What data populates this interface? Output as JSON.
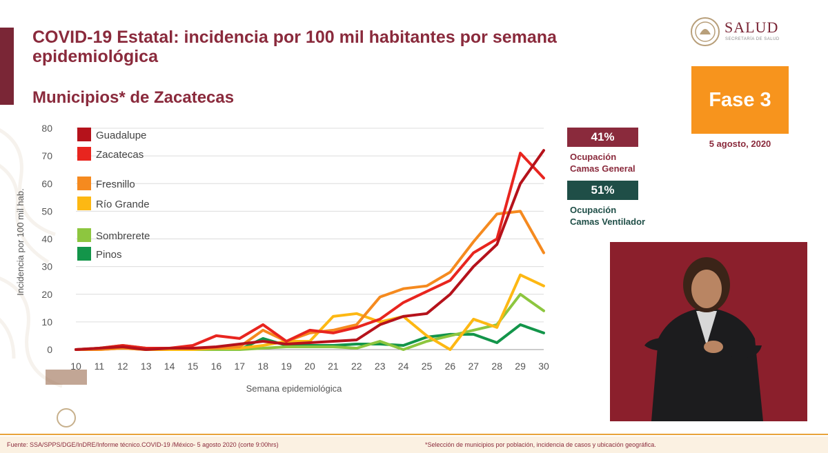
{
  "header": {
    "title": "COVID-19 Estatal: incidencia por 100 mil habitantes por semana epidemiológica",
    "subtitle": "Municipios* de Zacatecas"
  },
  "logo": {
    "brand": "SALUD",
    "sub": "SECRETARÍA DE SALUD"
  },
  "phase": {
    "label": "Fase 3",
    "date": "5 agosto, 2020"
  },
  "occupancy": [
    {
      "value": "41%",
      "label_line1": "Ocupación",
      "label_line2": "Camas General",
      "color": "#8a2a3c"
    },
    {
      "value": "51%",
      "label_line1": "Ocupación",
      "label_line2": "Camas Ventilador",
      "color": "#1f4e47"
    }
  ],
  "footer": {
    "source": "Fuente: SSA/SPPS/DGE/InDRE/Informe técnico.COVID-19 /México- 5 agosto 2020 (corte 9:00hrs)",
    "note": "*Selección de municipios por población, incidencia de casos y ubicación geográfica."
  },
  "chart_data": {
    "type": "line",
    "xlabel": "Semana epidemiológica",
    "ylabel": "Incidencia por 100 mil hab.",
    "ylim": [
      0,
      80
    ],
    "yticks": [
      0,
      10,
      20,
      30,
      40,
      50,
      60,
      70,
      80
    ],
    "x": [
      10,
      11,
      12,
      13,
      14,
      15,
      16,
      17,
      18,
      19,
      20,
      21,
      22,
      23,
      24,
      25,
      26,
      27,
      28,
      29,
      30
    ],
    "grid": true,
    "legend": "top-left",
    "series": [
      {
        "name": "Guadalupe",
        "color": "#b5121b",
        "values": [
          0,
          0.5,
          1,
          0,
          0.5,
          0.5,
          1,
          2,
          3,
          2,
          2.5,
          3,
          3.5,
          9,
          12,
          13,
          20,
          30,
          38,
          60,
          72
        ]
      },
      {
        "name": "Zacatecas",
        "color": "#e8251f",
        "values": [
          0,
          0.5,
          1.5,
          0.5,
          0.5,
          1.5,
          5,
          4,
          9,
          3,
          7,
          6,
          8,
          11,
          17,
          21,
          25,
          35,
          40,
          71,
          62
        ]
      },
      {
        "name": "Fresnillo",
        "color": "#f58a1f",
        "values": [
          0,
          0,
          0.5,
          0,
          0.5,
          0.5,
          0.5,
          1,
          7,
          3,
          6,
          7,
          9,
          19,
          22,
          23,
          28,
          39,
          49,
          50,
          35
        ]
      },
      {
        "name": "Río Grande",
        "color": "#fdb813",
        "values": [
          0,
          0,
          0.5,
          0,
          0,
          0,
          0.5,
          0.5,
          1.5,
          3,
          3,
          12,
          13,
          10,
          12,
          5,
          0,
          11,
          8,
          27,
          23
        ]
      },
      {
        "name": "Sombrerete",
        "color": "#8dc63f",
        "values": [
          0,
          0.5,
          1.5,
          0.5,
          0,
          0,
          0,
          0,
          0.5,
          1,
          1,
          1,
          0.5,
          3,
          0,
          3,
          5,
          7,
          9,
          20,
          14
        ]
      },
      {
        "name": "Pinos",
        "color": "#13954a",
        "values": [
          0,
          0,
          1,
          0,
          0,
          0,
          0,
          0,
          4,
          1.5,
          1.5,
          1.5,
          2,
          2,
          1.5,
          4.5,
          5.5,
          5.5,
          2.5,
          9,
          6
        ]
      }
    ]
  }
}
